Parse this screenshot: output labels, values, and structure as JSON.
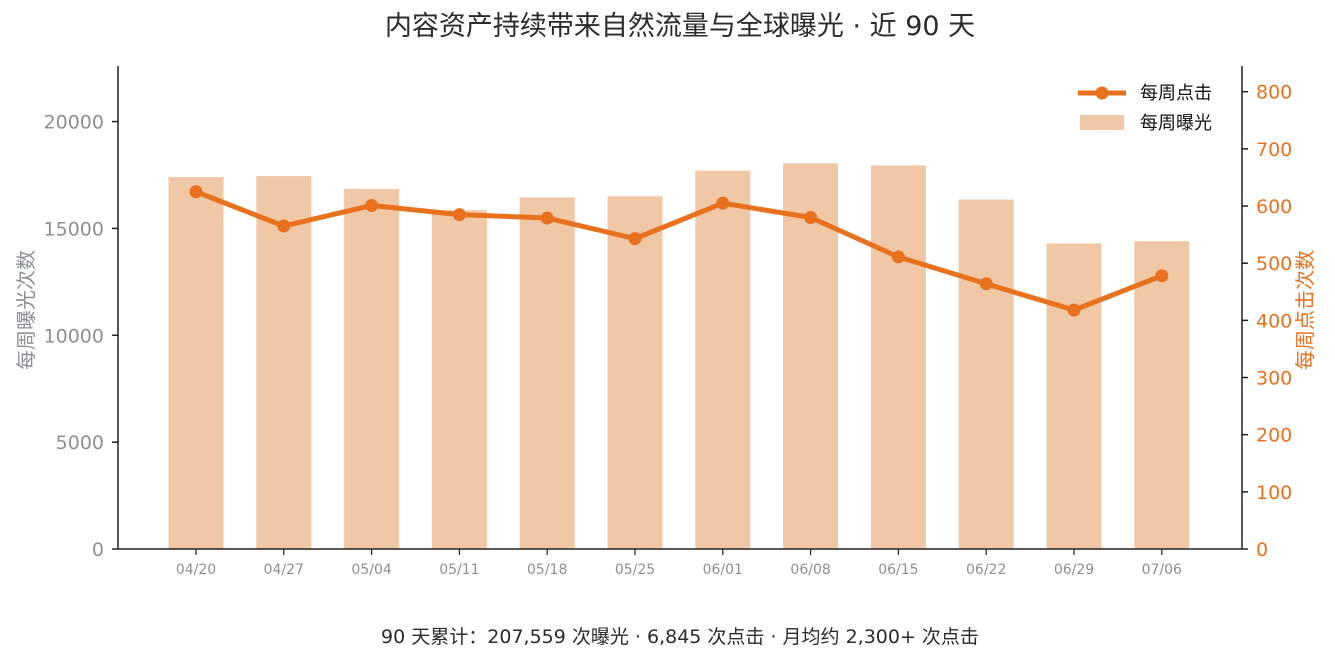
{
  "chart_data": {
    "type": "bar+line",
    "title": "内容资产持续带来自然流量与全球曝光 · 近 90 天",
    "footer": "90 天累计：207,559 次曝光  ·  6,845 次点击  ·  月均约 2,300+ 次点击",
    "categories": [
      "04/20",
      "04/27",
      "05/04",
      "05/11",
      "05/18",
      "05/25",
      "06/01",
      "06/08",
      "06/15",
      "06/22",
      "06/29",
      "07/06"
    ],
    "left_axis": {
      "label": "每周曝光次数",
      "ylim": [
        0,
        22600
      ],
      "ticks": [
        0,
        5000,
        10000,
        15000,
        20000
      ],
      "tick_labels": [
        "0",
        "5000",
        "10000",
        "15000",
        "20000"
      ]
    },
    "right_axis": {
      "label": "每周点击次数",
      "ylim": [
        0,
        845
      ],
      "ticks": [
        0,
        100,
        200,
        300,
        400,
        500,
        600,
        700,
        800
      ],
      "tick_labels": [
        "0",
        "100",
        "200",
        "300",
        "400",
        "500",
        "600",
        "700",
        "800"
      ]
    },
    "series": [
      {
        "name": "每周曝光",
        "kind": "bar",
        "axis": "left",
        "color": "#f0c8a6",
        "values": [
          17400,
          17450,
          16850,
          15850,
          16450,
          16500,
          17700,
          18050,
          17950,
          16350,
          14300,
          14400
        ]
      },
      {
        "name": "每周点击",
        "kind": "line",
        "axis": "right",
        "color": "#e8711e",
        "values": [
          625,
          565,
          601,
          585,
          579,
          543,
          605,
          580,
          511,
          464,
          418,
          478
        ]
      }
    ],
    "legend": {
      "position": "top-right",
      "line_label": "每周点击",
      "bar_label": "每周曝光"
    },
    "grid": false
  }
}
